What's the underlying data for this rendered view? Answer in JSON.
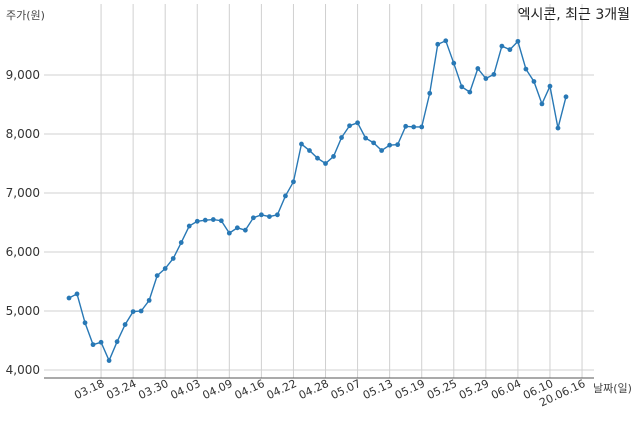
{
  "chart_data": {
    "type": "line",
    "title": "엑시콘, 최근 3개월",
    "ylabel": "주가(원)",
    "xlabel": "날짜(일)",
    "ylim": [
      4000,
      9850
    ],
    "yticks": [
      4000,
      5000,
      6000,
      7000,
      8000,
      9000
    ],
    "ytick_labels": [
      "4,000",
      "5,000",
      "6,000",
      "7,000",
      "8,000",
      "9,000"
    ],
    "xtick_labels": [
      "03.18",
      "03.24",
      "03.30",
      "04.03",
      "04.09",
      "04.16",
      "04.22",
      "04.28",
      "05.07",
      "05.13",
      "05.19",
      "05.25",
      "05.29",
      "06.04",
      "06.10",
      "20.06.16"
    ],
    "xtick_index": [
      4,
      8,
      12,
      16,
      20,
      24,
      28,
      32,
      36,
      40,
      44,
      48,
      52,
      56,
      60,
      64
    ],
    "grid": true,
    "line_color": "#2878b5",
    "series": [
      {
        "values": [
          5220,
          5290,
          4800,
          4430,
          4470,
          4160,
          4480,
          4770,
          4990,
          5000,
          5180,
          5600,
          5720,
          5890,
          6160,
          6440,
          6520,
          6540,
          6550,
          6530,
          6320,
          6410,
          6370,
          6580,
          6630,
          6600,
          6630,
          6950,
          7190,
          7830,
          7720,
          7590,
          7500,
          7620,
          7940,
          8140,
          8190,
          7930,
          7850,
          7720,
          7810,
          7820,
          8130,
          8120,
          8120,
          8690,
          9520,
          9580,
          9200,
          8800,
          8710,
          9110,
          8940,
          9010,
          9490,
          9430,
          9570,
          9100,
          8890,
          8510,
          8810,
          8100,
          8630
        ]
      }
    ]
  }
}
